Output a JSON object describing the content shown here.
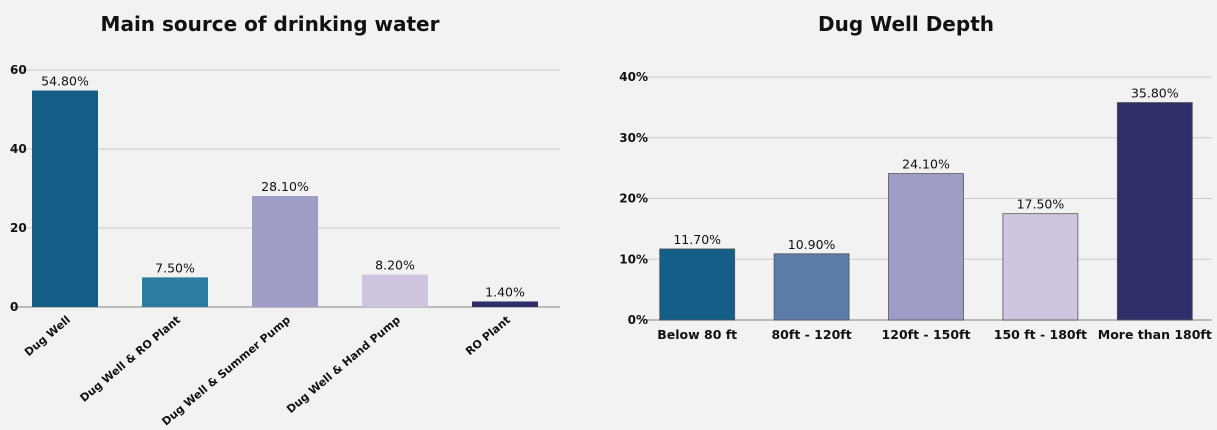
{
  "chart_data": [
    {
      "type": "bar",
      "title": "Main source of drinking water",
      "categories": [
        "Dug Well",
        "Dug Well & RO Plant",
        "Dug Well & Summer Pump",
        "Dug Well & Hand Pump",
        "RO Plant"
      ],
      "values": [
        54.8,
        7.5,
        28.1,
        8.2,
        1.4
      ],
      "data_labels": [
        "54.80%",
        "7.50%",
        "28.10%",
        "8.20%",
        "1.40%"
      ],
      "y_ticks": [
        0,
        20,
        40,
        60
      ],
      "y_tick_labels": [
        "0",
        "20",
        "40",
        "60"
      ],
      "ylim": [
        0,
        60
      ],
      "grid": true,
      "bar_colors": [
        "#155e87",
        "#2b7c9e",
        "#9d9dc7",
        "#cfc5e1",
        "#2e2f68"
      ]
    },
    {
      "type": "bar",
      "title": "Dug Well Depth",
      "categories": [
        "Below 80 ft",
        "80ft - 120ft",
        "120ft - 150ft",
        "150 ft - 180ft",
        "More than 180ft"
      ],
      "values": [
        11.7,
        10.9,
        24.1,
        17.5,
        35.8
      ],
      "data_labels": [
        "11.70%",
        "10.90%",
        "24.10%",
        "17.50%",
        "35.80%"
      ],
      "y_ticks": [
        0,
        10,
        20,
        30,
        40
      ],
      "y_tick_labels": [
        "0%",
        "10%",
        "20%",
        "30%",
        "40%"
      ],
      "ylim": [
        0,
        40
      ],
      "grid": true,
      "bar_colors": [
        "#155e87",
        "#5b7ba8",
        "#9d9dc7",
        "#cfc5e1",
        "#2e2f68"
      ]
    }
  ]
}
